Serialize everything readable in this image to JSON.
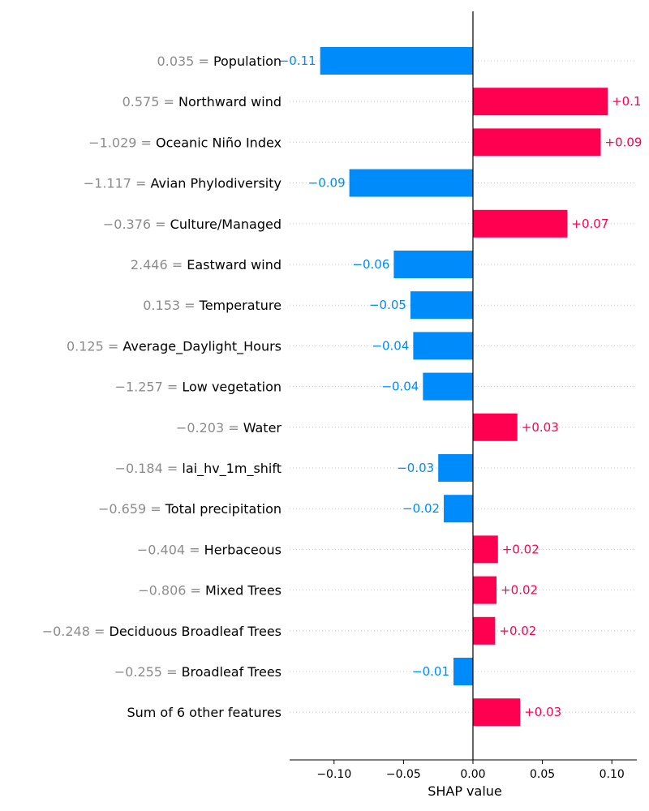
{
  "chart_data": {
    "type": "bar",
    "orientation": "horizontal",
    "title": "",
    "xlabel": "SHAP value",
    "ylabel": "",
    "xlim": [
      -0.132,
      0.118
    ],
    "xticks": [
      -0.1,
      -0.05,
      0.0,
      0.05,
      0.1
    ],
    "xtick_labels": [
      "−0.10",
      "−0.05",
      "0.00",
      "0.05",
      "0.10"
    ],
    "grid": false,
    "colors": {
      "positive": "#ff0051",
      "negative": "#008bfb",
      "feature_value": "#8c8c8c"
    },
    "features": [
      {
        "name": "Population",
        "value": "0.035",
        "shap": -0.11,
        "label": "−0.11"
      },
      {
        "name": "Northward wind",
        "value": "0.575",
        "shap": 0.097,
        "label": "+0.1"
      },
      {
        "name": "Oceanic Niño Index",
        "value": "−1.029",
        "shap": 0.092,
        "label": "+0.09"
      },
      {
        "name": "Avian Phylodiversity",
        "value": "−1.117",
        "shap": -0.089,
        "label": "−0.09"
      },
      {
        "name": "Culture/Managed",
        "value": "−0.376",
        "shap": 0.068,
        "label": "+0.07"
      },
      {
        "name": "Eastward wind",
        "value": "2.446",
        "shap": -0.057,
        "label": "−0.06"
      },
      {
        "name": "Temperature",
        "value": "0.153",
        "shap": -0.045,
        "label": "−0.05"
      },
      {
        "name": "Average_Daylight_Hours",
        "value": "0.125",
        "shap": -0.043,
        "label": "−0.04"
      },
      {
        "name": "Low vegetation",
        "value": "−1.257",
        "shap": -0.036,
        "label": "−0.04"
      },
      {
        "name": "Water",
        "value": "−0.203",
        "shap": 0.032,
        "label": "+0.03"
      },
      {
        "name": "lai_hv_1m_shift",
        "value": "−0.184",
        "shap": -0.025,
        "label": "−0.03"
      },
      {
        "name": "Total precipitation",
        "value": "−0.659",
        "shap": -0.021,
        "label": "−0.02"
      },
      {
        "name": "Herbaceous",
        "value": "−0.404",
        "shap": 0.018,
        "label": "+0.02"
      },
      {
        "name": "Mixed Trees",
        "value": "−0.806",
        "shap": 0.017,
        "label": "+0.02"
      },
      {
        "name": "Deciduous Broadleaf Trees",
        "value": "−0.248",
        "shap": 0.016,
        "label": "+0.02"
      },
      {
        "name": "Broadleaf Trees",
        "value": "−0.255",
        "shap": -0.014,
        "label": "−0.01"
      },
      {
        "name": "Sum of 6 other features",
        "value": "",
        "shap": 0.034,
        "label": "+0.03"
      }
    ]
  }
}
